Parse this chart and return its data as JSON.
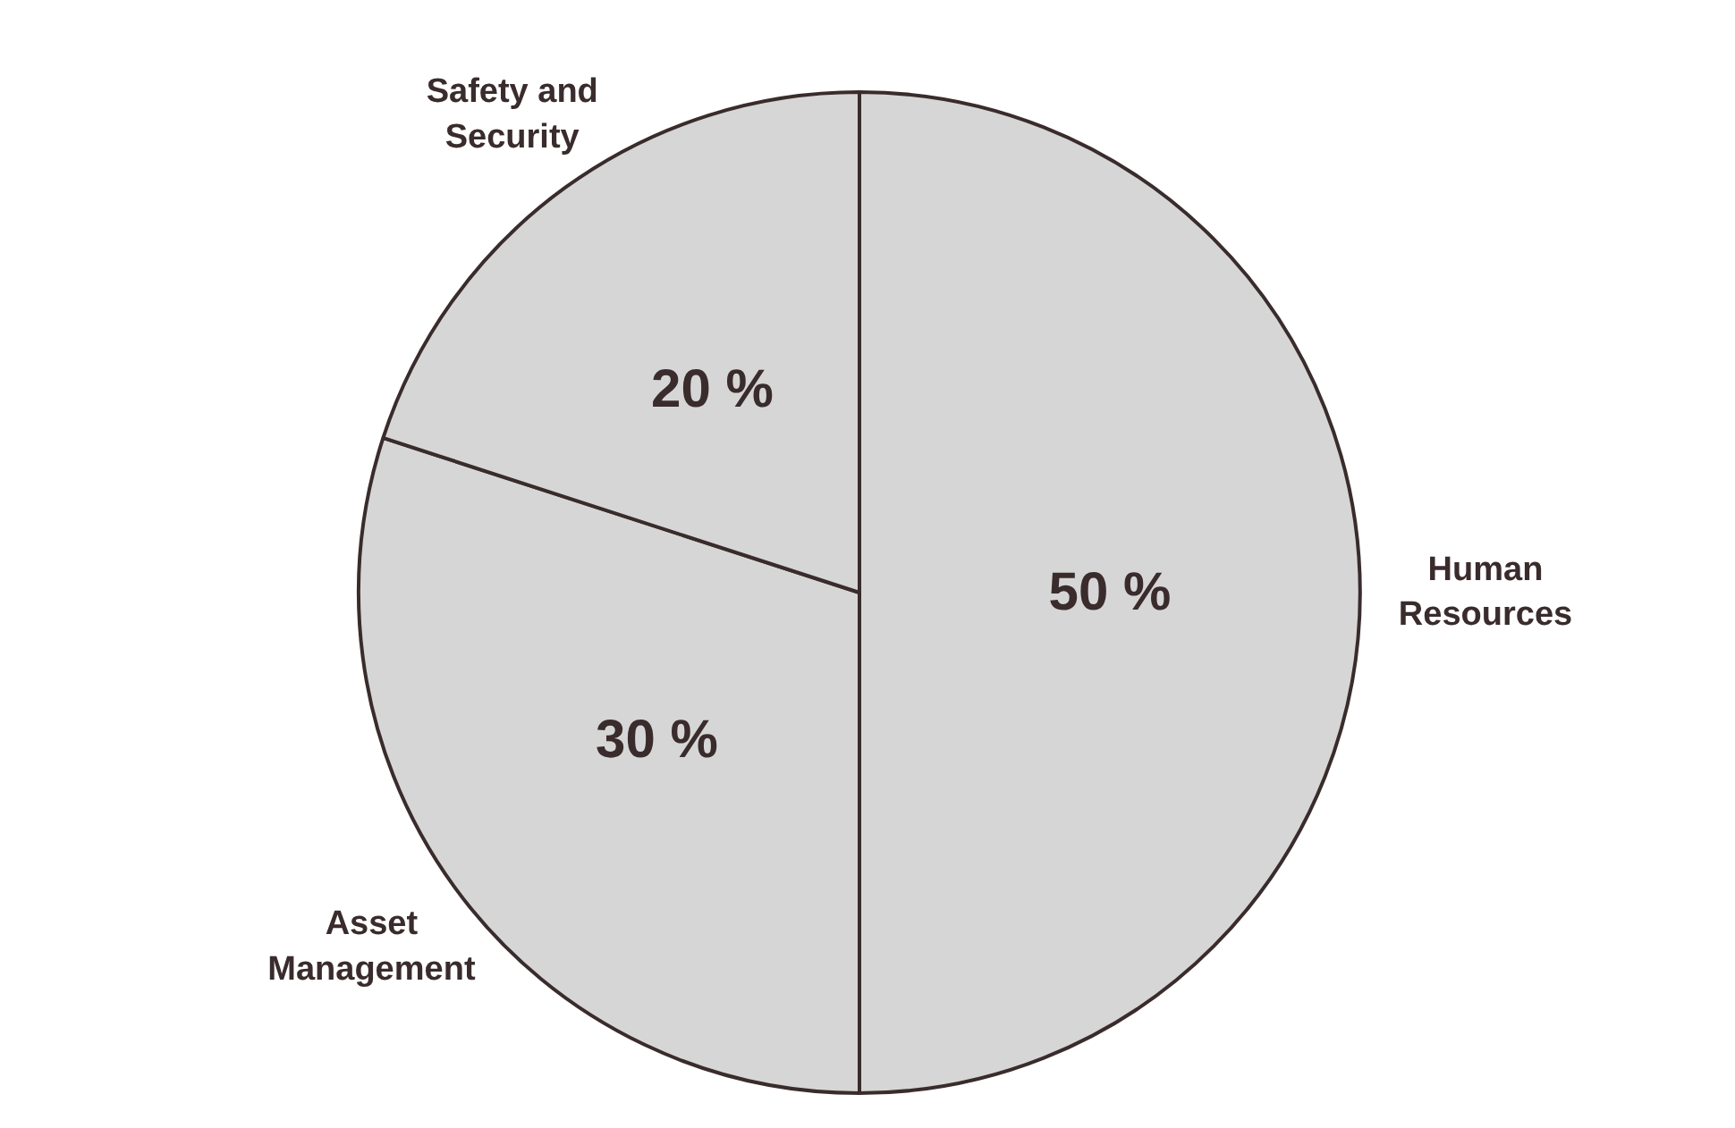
{
  "chart_data": {
    "type": "pie",
    "categories": [
      "Human\nResources",
      "Asset\nManagement",
      "Safety and\nSecurity"
    ],
    "values": [
      50,
      30,
      20
    ],
    "colors": [
      "#d6d6d6",
      "#d6d6d6",
      "#d6d6d6"
    ],
    "value_labels": [
      "50 %",
      "30 %",
      "20 %"
    ]
  }
}
